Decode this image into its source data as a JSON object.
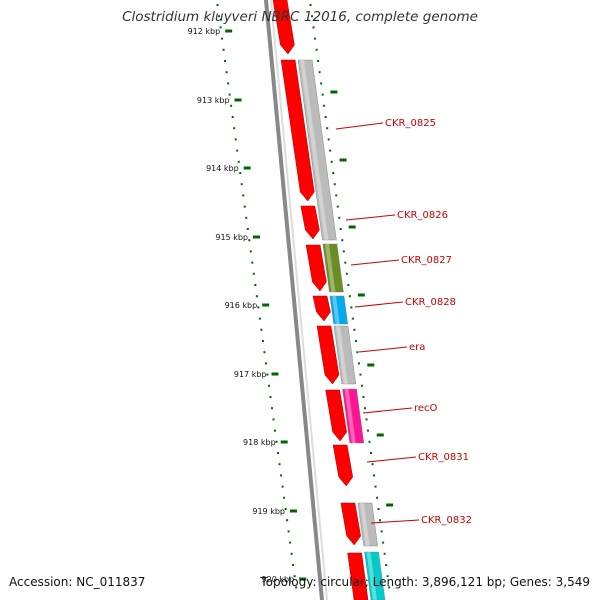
{
  "title": "Clostridium kluyveri NBRC 12016, complete genome",
  "footer": {
    "accession": "Accession: NC_011837",
    "stats": "Topology: circular; Length: 3,896,121 bp; Genes: 3,549"
  },
  "ticks": [
    {
      "label": "912 kbp",
      "kb": 912
    },
    {
      "label": "913 kbp",
      "kb": 913
    },
    {
      "label": "914 kbp",
      "kb": 914
    },
    {
      "label": "915 kbp",
      "kb": 915
    },
    {
      "label": "916 kbp",
      "kb": 916
    },
    {
      "label": "917 kbp",
      "kb": 917
    },
    {
      "label": "918 kbp",
      "kb": 918
    },
    {
      "label": "919 kbp",
      "kb": 919
    },
    {
      "label": "920 kbp",
      "kb": 920
    }
  ],
  "colors": {
    "cds": "#ff0000",
    "gene_label": "#cc0000",
    "tick": "#006600",
    "backbone": "#888888",
    "gray_feature": "#bbbbbb",
    "olive_feature": "#6b8e23",
    "cyan_feature": "#00aaee",
    "magenta_feature": "#ff1493",
    "teal_feature": "#00cccc"
  },
  "genes": [
    {
      "label": "CKR_0825",
      "category_color": "#bbbbbb"
    },
    {
      "label": "CKR_0826",
      "category_color": "#bbbbbb"
    },
    {
      "label": "CKR_0827",
      "category_color": "#6b8e23"
    },
    {
      "label": "CKR_0828",
      "category_color": "#00aaee"
    },
    {
      "label": "era",
      "category_color": "#bbbbbb"
    },
    {
      "label": "recO",
      "category_color": "#ff1493"
    },
    {
      "label": "CKR_0831",
      "category_color": ""
    },
    {
      "label": "CKR_0832",
      "category_color": "#bbbbbb"
    }
  ]
}
